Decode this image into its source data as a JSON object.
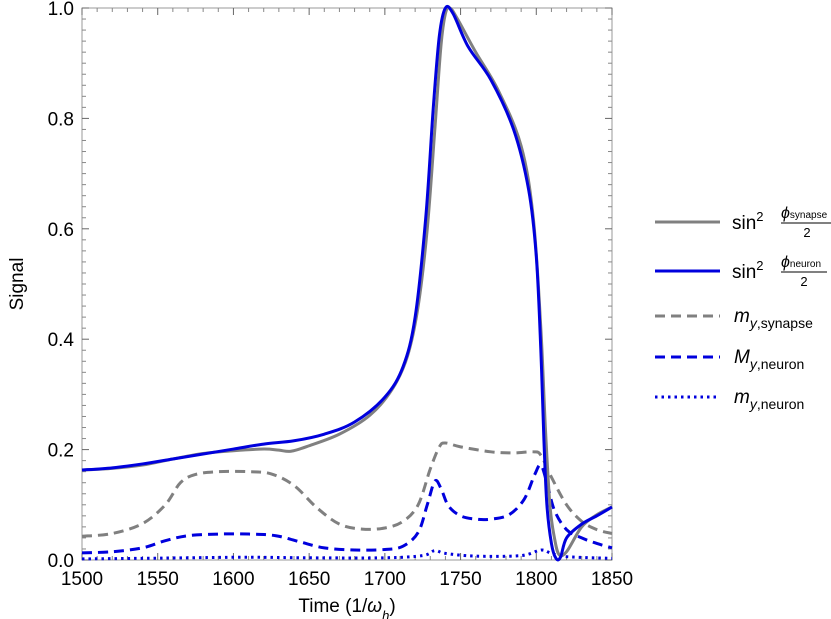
{
  "chart_data": {
    "type": "line",
    "title": "",
    "xlabel": {
      "prefix": "Time (1/",
      "var": "ω",
      "sub": "h",
      "suffix": ")"
    },
    "ylabel": "Signal",
    "xlim": [
      1500,
      1850
    ],
    "ylim": [
      0,
      1.0
    ],
    "x_ticks": [
      1500,
      1550,
      1600,
      1650,
      1700,
      1750,
      1800,
      1850
    ],
    "x_tick_labels": [
      "1500",
      "1550",
      "1600",
      "1650",
      "1700",
      "1750",
      "1800",
      "1850"
    ],
    "y_ticks": [
      0,
      0.2,
      0.4,
      0.6,
      0.8,
      1.0
    ],
    "y_tick_labels": [
      "0.0",
      "0.2",
      "0.4",
      "0.6",
      "0.8",
      "1.0"
    ],
    "grid": false,
    "legend_position": "right",
    "series": [
      {
        "name": "sin² φ_synapse/2",
        "legend": {
          "base": "sin",
          "sup": "2",
          "num": "ϕ",
          "num_sub": "synapse",
          "den": "2"
        },
        "color": "#808080",
        "style": "solid",
        "points": [
          [
            1500,
            0.163
          ],
          [
            1520,
            0.166
          ],
          [
            1540,
            0.172
          ],
          [
            1560,
            0.183
          ],
          [
            1580,
            0.193
          ],
          [
            1600,
            0.198
          ],
          [
            1620,
            0.201
          ],
          [
            1630,
            0.199
          ],
          [
            1638,
            0.197
          ],
          [
            1650,
            0.207
          ],
          [
            1670,
            0.228
          ],
          [
            1690,
            0.262
          ],
          [
            1705,
            0.31
          ],
          [
            1715,
            0.37
          ],
          [
            1722,
            0.46
          ],
          [
            1728,
            0.6
          ],
          [
            1733,
            0.78
          ],
          [
            1737,
            0.93
          ],
          [
            1740,
            0.99
          ],
          [
            1743,
            1.0
          ],
          [
            1748,
            0.98
          ],
          [
            1760,
            0.92
          ],
          [
            1775,
            0.85
          ],
          [
            1790,
            0.75
          ],
          [
            1798,
            0.62
          ],
          [
            1803,
            0.42
          ],
          [
            1806,
            0.24
          ],
          [
            1809,
            0.1
          ],
          [
            1812,
            0.04
          ],
          [
            1815,
            0.01
          ],
          [
            1820,
            0.015
          ],
          [
            1830,
            0.06
          ],
          [
            1840,
            0.082
          ],
          [
            1850,
            0.096
          ]
        ]
      },
      {
        "name": "sin² φ_neuron/2",
        "legend": {
          "base": "sin",
          "sup": "2",
          "num": "ϕ",
          "num_sub": "neuron",
          "den": "2"
        },
        "color": "#0000dd",
        "style": "solid",
        "points": [
          [
            1500,
            0.163
          ],
          [
            1520,
            0.167
          ],
          [
            1540,
            0.174
          ],
          [
            1560,
            0.183
          ],
          [
            1580,
            0.192
          ],
          [
            1600,
            0.201
          ],
          [
            1620,
            0.21
          ],
          [
            1640,
            0.216
          ],
          [
            1660,
            0.228
          ],
          [
            1680,
            0.25
          ],
          [
            1700,
            0.295
          ],
          [
            1712,
            0.35
          ],
          [
            1720,
            0.44
          ],
          [
            1727,
            0.62
          ],
          [
            1732,
            0.82
          ],
          [
            1736,
            0.95
          ],
          [
            1740,
            1.0
          ],
          [
            1745,
            0.99
          ],
          [
            1755,
            0.93
          ],
          [
            1770,
            0.87
          ],
          [
            1785,
            0.78
          ],
          [
            1795,
            0.67
          ],
          [
            1800,
            0.55
          ],
          [
            1803,
            0.38
          ],
          [
            1805,
            0.22
          ],
          [
            1807,
            0.1
          ],
          [
            1810,
            0.03
          ],
          [
            1813,
            0.003
          ],
          [
            1816,
            0.005
          ],
          [
            1820,
            0.04
          ],
          [
            1830,
            0.065
          ],
          [
            1840,
            0.08
          ],
          [
            1850,
            0.096
          ]
        ]
      },
      {
        "name": "m_y,synapse",
        "legend": {
          "var": "m",
          "sub_var": "y",
          "sub": ",synapse"
        },
        "color": "#808080",
        "style": "dashed",
        "points": [
          [
            1500,
            0.043
          ],
          [
            1520,
            0.048
          ],
          [
            1540,
            0.066
          ],
          [
            1555,
            0.1
          ],
          [
            1565,
            0.14
          ],
          [
            1575,
            0.155
          ],
          [
            1590,
            0.16
          ],
          [
            1610,
            0.16
          ],
          [
            1625,
            0.156
          ],
          [
            1640,
            0.135
          ],
          [
            1655,
            0.095
          ],
          [
            1670,
            0.065
          ],
          [
            1685,
            0.056
          ],
          [
            1700,
            0.058
          ],
          [
            1712,
            0.07
          ],
          [
            1722,
            0.1
          ],
          [
            1730,
            0.165
          ],
          [
            1736,
            0.205
          ],
          [
            1740,
            0.212
          ],
          [
            1750,
            0.205
          ],
          [
            1770,
            0.196
          ],
          [
            1785,
            0.194
          ],
          [
            1798,
            0.196
          ],
          [
            1803,
            0.19
          ],
          [
            1810,
            0.15
          ],
          [
            1820,
            0.1
          ],
          [
            1830,
            0.07
          ],
          [
            1840,
            0.055
          ],
          [
            1850,
            0.048
          ]
        ]
      },
      {
        "name": "M_y,neuron",
        "legend": {
          "var": "M",
          "sub_var": "y",
          "sub": ",neuron"
        },
        "color": "#0000dd",
        "style": "dashed",
        "points": [
          [
            1500,
            0.013
          ],
          [
            1520,
            0.015
          ],
          [
            1540,
            0.022
          ],
          [
            1555,
            0.035
          ],
          [
            1570,
            0.044
          ],
          [
            1590,
            0.047
          ],
          [
            1610,
            0.047
          ],
          [
            1628,
            0.044
          ],
          [
            1645,
            0.032
          ],
          [
            1660,
            0.022
          ],
          [
            1680,
            0.018
          ],
          [
            1700,
            0.019
          ],
          [
            1712,
            0.025
          ],
          [
            1722,
            0.05
          ],
          [
            1728,
            0.1
          ],
          [
            1733,
            0.143
          ],
          [
            1737,
            0.13
          ],
          [
            1742,
            0.098
          ],
          [
            1750,
            0.08
          ],
          [
            1760,
            0.074
          ],
          [
            1770,
            0.074
          ],
          [
            1782,
            0.082
          ],
          [
            1792,
            0.11
          ],
          [
            1799,
            0.155
          ],
          [
            1803,
            0.172
          ],
          [
            1807,
            0.14
          ],
          [
            1812,
            0.09
          ],
          [
            1820,
            0.055
          ],
          [
            1830,
            0.04
          ],
          [
            1840,
            0.03
          ],
          [
            1850,
            0.022
          ]
        ]
      },
      {
        "name": "m_y,neuron",
        "legend": {
          "var": "m",
          "sub_var": "y",
          "sub": ",neuron"
        },
        "color": "#0000dd",
        "style": "dotted",
        "points": [
          [
            1500,
            0.002
          ],
          [
            1540,
            0.003
          ],
          [
            1570,
            0.004
          ],
          [
            1610,
            0.005
          ],
          [
            1650,
            0.004
          ],
          [
            1700,
            0.004
          ],
          [
            1725,
            0.008
          ],
          [
            1733,
            0.017
          ],
          [
            1740,
            0.012
          ],
          [
            1760,
            0.007
          ],
          [
            1790,
            0.008
          ],
          [
            1803,
            0.018
          ],
          [
            1810,
            0.012
          ],
          [
            1820,
            0.006
          ],
          [
            1850,
            0.003
          ]
        ]
      }
    ]
  }
}
